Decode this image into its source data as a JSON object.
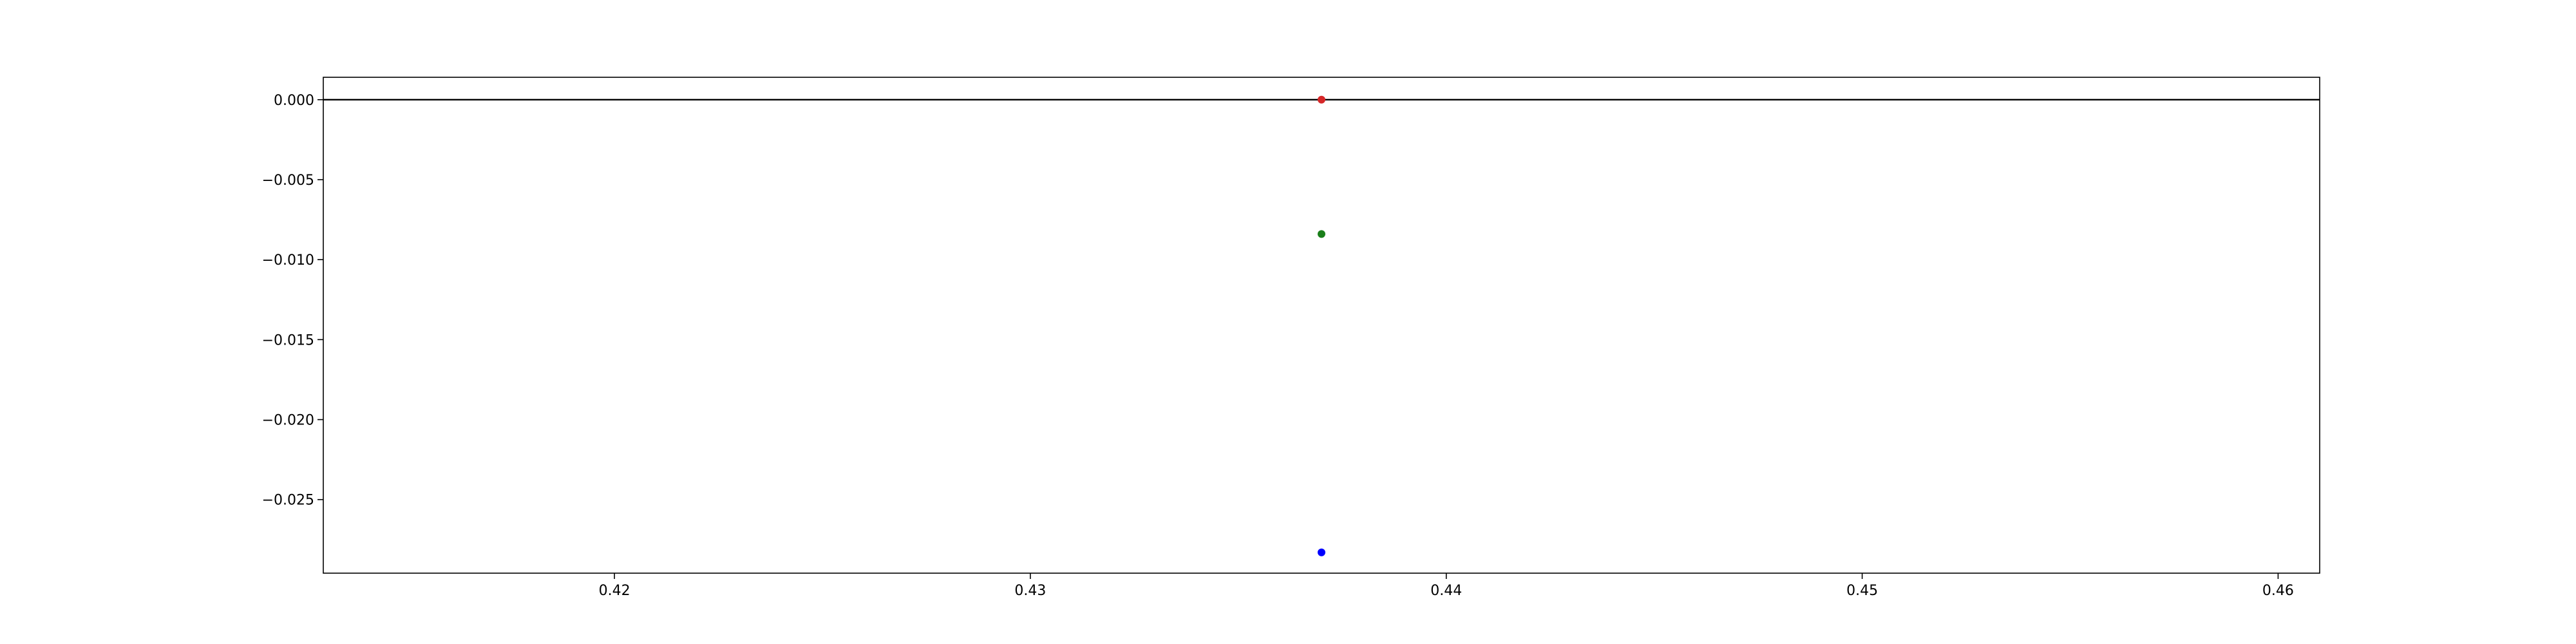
{
  "chart_data": {
    "type": "scatter",
    "title": "",
    "xlabel": "",
    "ylabel": "",
    "xlim": [
      0.413,
      0.461
    ],
    "ylim": [
      -0.0296,
      0.0014
    ],
    "xticks": [
      {
        "value": 0.42,
        "label": "0.42"
      },
      {
        "value": 0.43,
        "label": "0.43"
      },
      {
        "value": 0.44,
        "label": "0.44"
      },
      {
        "value": 0.45,
        "label": "0.45"
      },
      {
        "value": 0.46,
        "label": "0.46"
      }
    ],
    "yticks": [
      {
        "value": 0.0,
        "label": "0.000"
      },
      {
        "value": -0.005,
        "label": "−0.005"
      },
      {
        "value": -0.01,
        "label": "−0.010"
      },
      {
        "value": -0.015,
        "label": "−0.015"
      },
      {
        "value": -0.02,
        "label": "−0.020"
      },
      {
        "value": -0.025,
        "label": "−0.025"
      }
    ],
    "hlines": [
      {
        "y": 0.0,
        "color": "#000000"
      }
    ],
    "points": [
      {
        "x": 0.437,
        "y": 0.0,
        "color": "#d62728"
      },
      {
        "x": 0.437,
        "y": -0.0084,
        "color": "#1a7f1a"
      },
      {
        "x": 0.437,
        "y": -0.0283,
        "color": "#0000ff"
      }
    ],
    "grid": false,
    "legend": "none"
  }
}
